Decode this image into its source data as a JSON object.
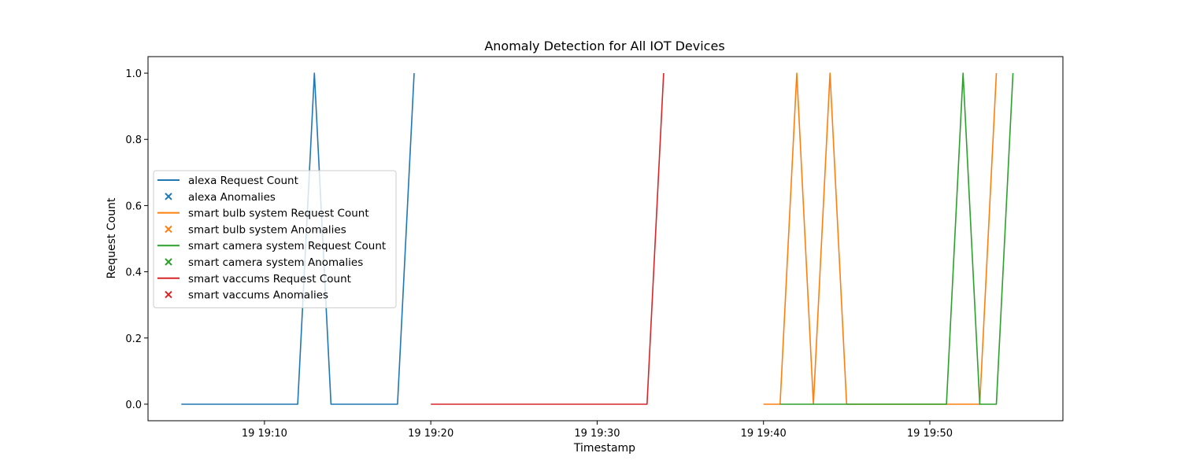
{
  "chart_data": {
    "type": "line",
    "title": "Anomaly Detection for All IOT Devices",
    "xlabel": "Timestamp",
    "ylabel": "Request Count",
    "x_unit": "time (HH:MM, day 19)",
    "xlim": [
      "19:03",
      "19:58"
    ],
    "ylim": [
      -0.05,
      1.05
    ],
    "x_ticks": [
      {
        "t": "19:10",
        "label": "19 19:10"
      },
      {
        "t": "19:20",
        "label": "19 19:20"
      },
      {
        "t": "19:30",
        "label": "19 19:30"
      },
      {
        "t": "19:40",
        "label": "19 19:40"
      },
      {
        "t": "19:50",
        "label": "19 19:50"
      }
    ],
    "y_ticks": [
      {
        "v": 0.0,
        "label": "0.0"
      },
      {
        "v": 0.2,
        "label": "0.2"
      },
      {
        "v": 0.4,
        "label": "0.4"
      },
      {
        "v": 0.6,
        "label": "0.6"
      },
      {
        "v": 0.8,
        "label": "0.8"
      },
      {
        "v": 1.0,
        "label": "1.0"
      }
    ],
    "grid": false,
    "legend_position": "center-left",
    "series": [
      {
        "name": "alexa Request Count",
        "anomalies_name": "alexa Anomalies",
        "color": "#1f77b4",
        "points": [
          [
            "19:05",
            0
          ],
          [
            "19:12",
            0
          ],
          [
            "19:13",
            1
          ],
          [
            "19:14",
            0
          ],
          [
            "19:18",
            0
          ],
          [
            "19:19",
            1
          ]
        ]
      },
      {
        "name": "smart bulb system Request Count",
        "anomalies_name": "smart bulb system Anomalies",
        "color": "#ff7f0e",
        "points": [
          [
            "19:40",
            0
          ],
          [
            "19:41",
            0
          ],
          [
            "19:42",
            1
          ],
          [
            "19:43",
            0
          ],
          [
            "19:44",
            1
          ],
          [
            "19:45",
            0
          ],
          [
            "19:53",
            0
          ],
          [
            "19:54",
            1
          ]
        ]
      },
      {
        "name": "smart camera system Request Count",
        "anomalies_name": "smart camera system Anomalies",
        "color": "#2ca02c",
        "points": [
          [
            "19:41",
            0
          ],
          [
            "19:51",
            0
          ],
          [
            "19:52",
            1
          ],
          [
            "19:53",
            0
          ],
          [
            "19:54",
            0
          ],
          [
            "19:55",
            1
          ]
        ]
      },
      {
        "name": "smart vaccums Request Count",
        "anomalies_name": "smart vaccums Anomalies",
        "color": "#d62728",
        "points": [
          [
            "19:20",
            0
          ],
          [
            "19:33",
            0
          ],
          [
            "19:34",
            1
          ]
        ]
      }
    ]
  }
}
